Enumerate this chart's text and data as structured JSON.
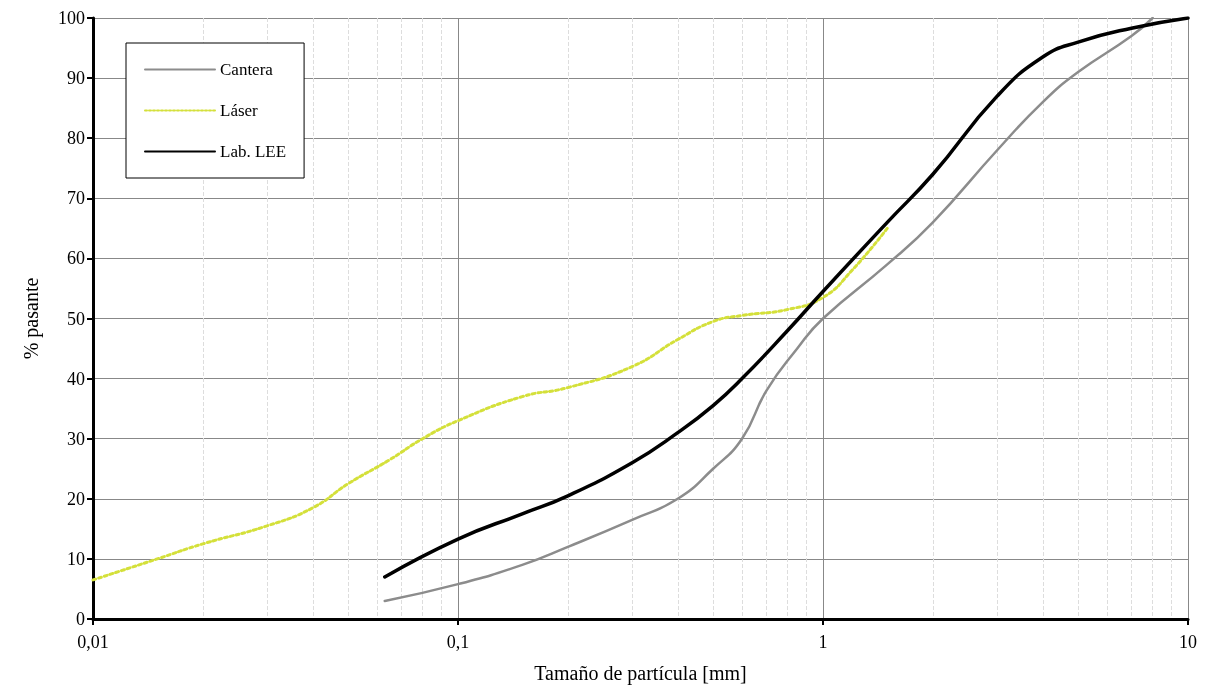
{
  "chart_data": {
    "type": "line",
    "xlabel": "Tamaño de partícula [mm]",
    "ylabel": "% pasante",
    "log": "x",
    "xlim": [
      0.01,
      10
    ],
    "xticks": [
      {
        "value": 0.01,
        "label": "0,01"
      },
      {
        "value": 0.1,
        "label": "0,1"
      },
      1,
      10
    ],
    "ylim": [
      0,
      100
    ],
    "yticks": [
      0,
      10,
      20,
      30,
      40,
      50,
      60,
      70,
      80,
      90,
      100
    ],
    "grid": true,
    "legend": "top left",
    "series": [
      {
        "name": "Cantera",
        "color": "#8c8c8c",
        "line_style": "solid",
        "x": [
          0.063,
          0.1,
          0.15,
          0.2,
          0.3,
          0.4,
          0.5,
          0.6,
          0.7,
          0.85,
          1,
          1.5,
          2,
          3,
          4,
          5,
          7,
          8
        ],
        "values": [
          3,
          5.8,
          9,
          12,
          16.5,
          20,
          25,
          30,
          38,
          45,
          50,
          59,
          66,
          78,
          86,
          91,
          97,
          100
        ]
      },
      {
        "name": "Láser",
        "color": "#d4e03a",
        "line_style": "dotted",
        "x": [
          0.01,
          0.015,
          0.02,
          0.03,
          0.04,
          0.05,
          0.065,
          0.08,
          0.1,
          0.15,
          0.2,
          0.3,
          0.4,
          0.5,
          0.6,
          0.8,
          1,
          1.2,
          1.5
        ],
        "values": [
          6.5,
          10,
          12.5,
          15.5,
          18.5,
          22.5,
          26.5,
          30,
          33,
          37,
          38.5,
          42,
          46.5,
          49.5,
          50.5,
          51.5,
          53.5,
          58,
          65
        ]
      },
      {
        "name": "Lab. LEE",
        "color": "#000000",
        "line_style": "solid",
        "x": [
          0.063,
          0.1,
          0.15,
          0.2,
          0.3,
          0.4,
          0.5,
          0.6,
          0.8,
          1,
          1.5,
          2,
          3,
          4,
          5,
          7,
          10
        ],
        "values": [
          7,
          13.3,
          17.5,
          20.5,
          26,
          31,
          35.5,
          40,
          48,
          54.5,
          66,
          74,
          87,
          93.5,
          96,
          98.3,
          100
        ]
      }
    ]
  }
}
